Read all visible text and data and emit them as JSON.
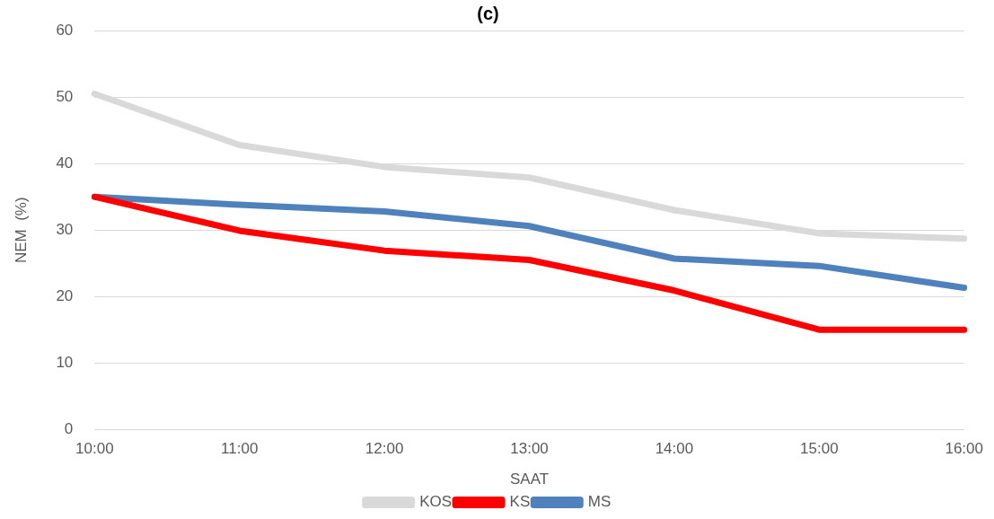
{
  "chart_data": {
    "type": "line",
    "title": "(c)",
    "xlabel": "SAAT",
    "ylabel": "NEM  (%)",
    "categories": [
      "10:00",
      "11:00",
      "12:00",
      "13:00",
      "14:00",
      "15:00",
      "16:00"
    ],
    "series": [
      {
        "name": "KOS",
        "color": "#d9d9d9",
        "values": [
          50.5,
          42.8,
          39.5,
          37.9,
          33.0,
          29.5,
          28.7
        ]
      },
      {
        "name": "KS",
        "color": "#ff0000",
        "values": [
          35.0,
          29.9,
          26.9,
          25.5,
          20.9,
          15.0,
          15.0
        ]
      },
      {
        "name": "MS",
        "color": "#4f81bd",
        "values": [
          35.0,
          33.8,
          32.8,
          30.6,
          25.7,
          24.6,
          21.3
        ]
      }
    ],
    "ylim": [
      0,
      60
    ],
    "yticks": [
      0,
      10,
      20,
      30,
      40,
      50,
      60
    ],
    "grid": "y",
    "legend": "bottom",
    "marker": "none",
    "line_style": "solid"
  }
}
